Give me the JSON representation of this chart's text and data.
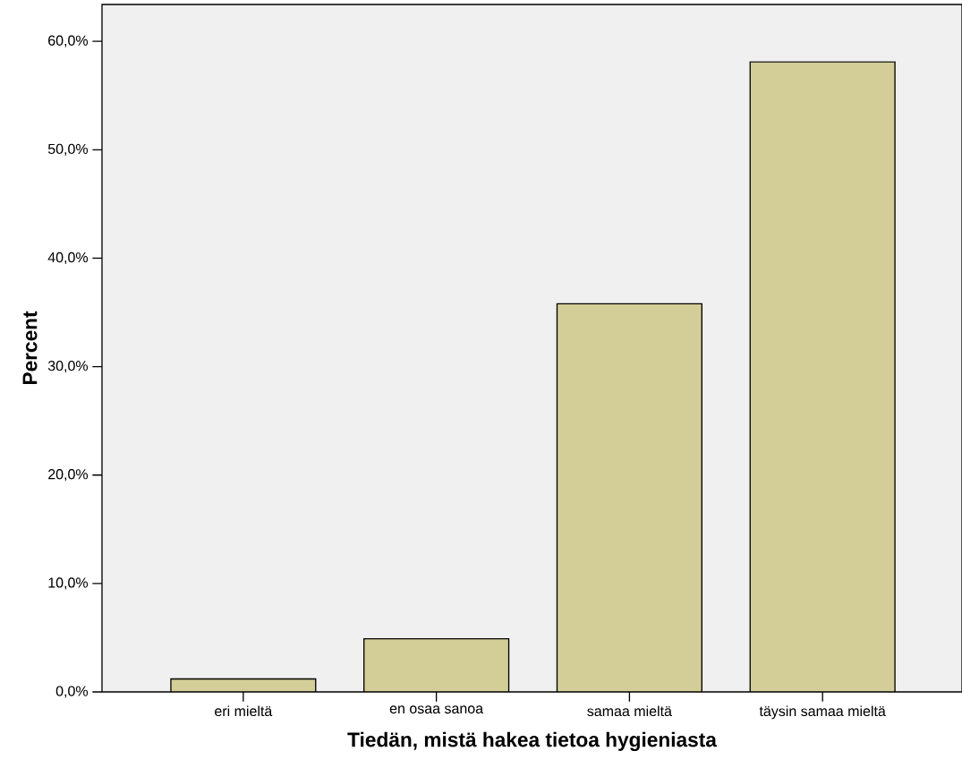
{
  "chart_data": {
    "type": "bar",
    "xlabel": "Tiedän, mistä hakea tietoa hygieniasta",
    "ylabel": "Percent",
    "categories": [
      "eri mieltä",
      "en osaa sanoa",
      "samaa mieltä",
      "täysin samaa mieltä"
    ],
    "values": [
      1.2,
      4.9,
      35.8,
      58.1
    ],
    "color": "#d3ce97",
    "ylim": [
      0,
      63.4
    ],
    "yticks": [
      {
        "value": 0,
        "label": "0,0%"
      },
      {
        "value": 10,
        "label": "10,0%"
      },
      {
        "value": 20,
        "label": "20,0%"
      },
      {
        "value": 30,
        "label": "30,0%"
      },
      {
        "value": 40,
        "label": "40,0%"
      },
      {
        "value": 50,
        "label": "50,0%"
      },
      {
        "value": 60,
        "label": "60,0%"
      }
    ]
  }
}
